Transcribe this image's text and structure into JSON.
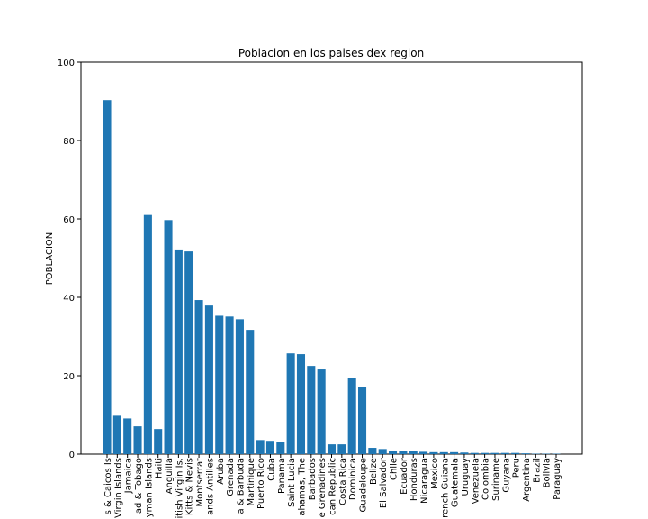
{
  "chart_data": {
    "type": "bar",
    "title": "Poblacion en los paises dex region",
    "y_label": "POBLACION",
    "categories": [
      "s & Caicos Is",
      "Virgin Islands",
      "Jamaica",
      "ad & Tobago",
      "yman Islands",
      "Haiti",
      "Anguilla",
      "itish Virgin Is.",
      "Kitts & Nevis",
      "Montserrat",
      "ands Antilles",
      "Aruba",
      "Grenada",
      "a & Barbuda",
      "Martinique",
      "Puerto Rico",
      "Cuba",
      "Panama",
      "Saint Lucia",
      "ahamas, The",
      "Barbados",
      "e Grenadines",
      "can Republic",
      "Costa Rica",
      "Dominica",
      "Guadeloupe",
      "Belize",
      "El Salvador",
      "Chile",
      "Ecuador",
      "Honduras",
      "Nicaragua",
      "Mexico",
      "rench Guiana",
      "Guatemala",
      "Uruguay",
      "Venezuela",
      "Colombia",
      "Suriname",
      "Guyana",
      "Peru",
      "Argentina",
      "Brazil",
      "Bolivia",
      "Paraguay"
    ],
    "values": [
      90.3,
      9.8,
      9.1,
      7.1,
      61.0,
      6.4,
      59.7,
      52.2,
      51.7,
      39.3,
      37.9,
      35.3,
      35.1,
      34.4,
      31.7,
      3.6,
      3.4,
      3.2,
      25.7,
      25.5,
      22.5,
      21.6,
      2.5,
      2.5,
      19.5,
      17.2,
      1.6,
      1.3,
      0.9,
      0.7,
      0.7,
      0.6,
      0.5,
      0.5,
      0.5,
      0.4,
      0.3,
      0.3,
      0.3,
      0.3,
      0.3,
      0.2,
      0.1,
      0.1,
      0.1
    ],
    "color": "#1f77b4",
    "ylim": [
      0,
      100
    ],
    "yticks": [
      0,
      20,
      40,
      60,
      80,
      100
    ],
    "grid": false
  }
}
